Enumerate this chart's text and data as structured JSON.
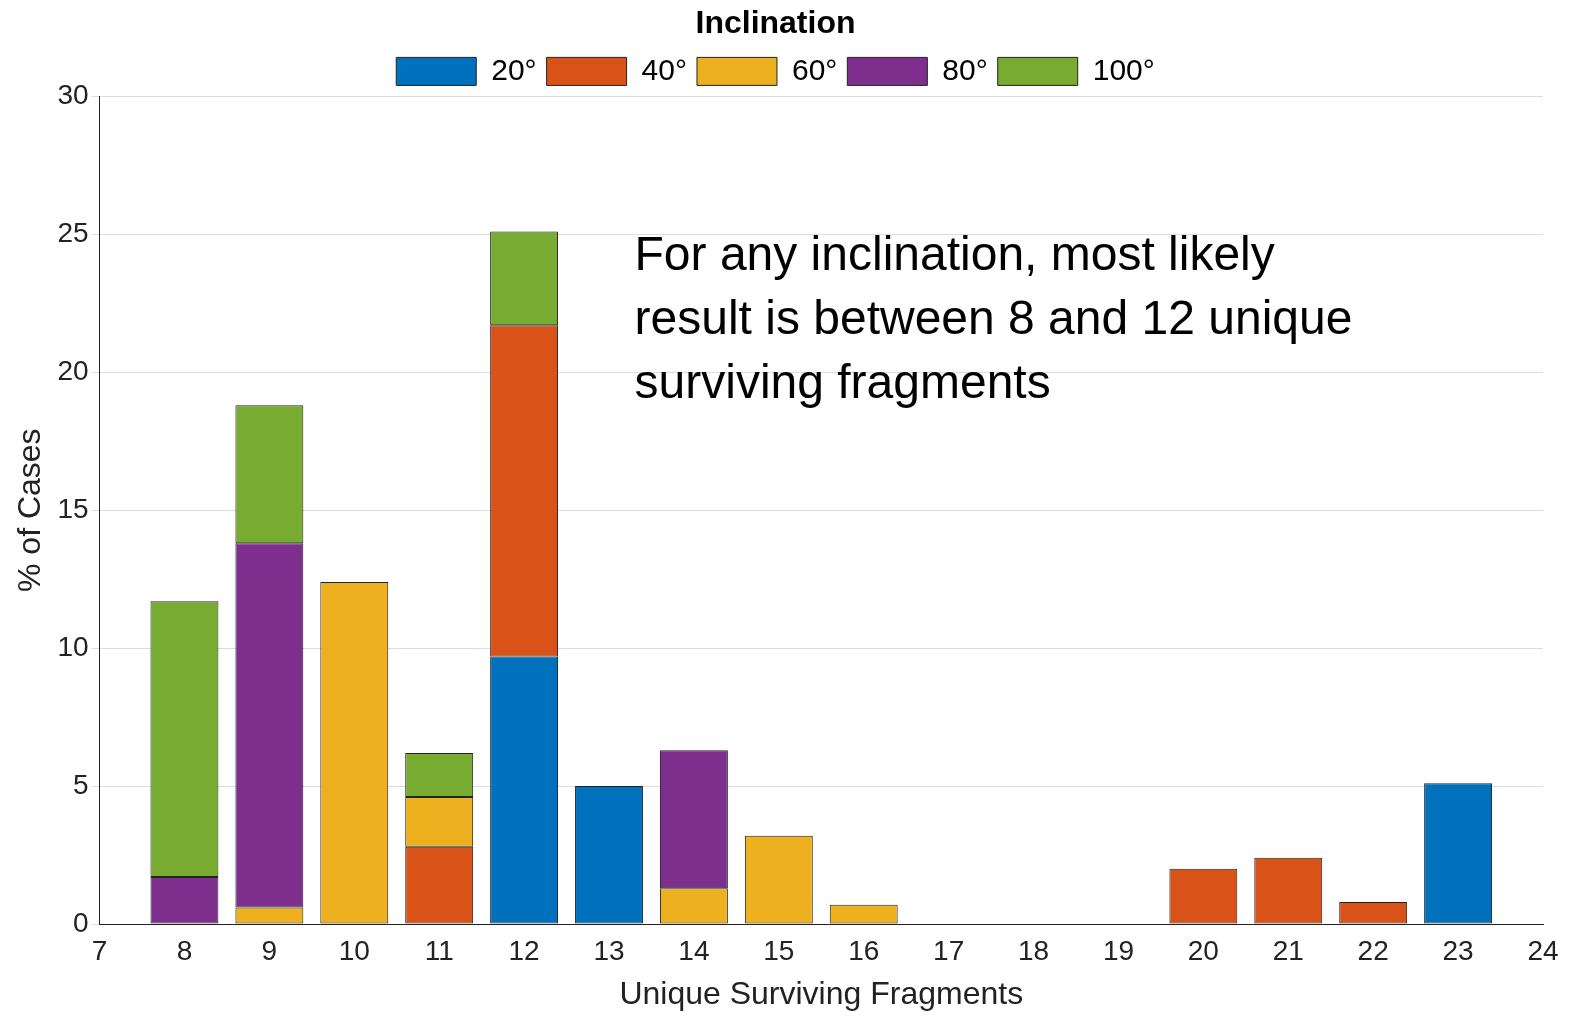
{
  "chart_data": {
    "type": "bar",
    "stacked": true,
    "xlabel": "Unique Surviving Fragments",
    "ylabel": "% of Cases",
    "legend_title": "Inclination",
    "legend": "top",
    "x": [
      8,
      9,
      10,
      11,
      12,
      13,
      14,
      15,
      16,
      17,
      18,
      19,
      20,
      21,
      22,
      23
    ],
    "xlim": [
      7,
      24
    ],
    "xticks": [
      7,
      8,
      9,
      10,
      11,
      12,
      13,
      14,
      15,
      16,
      17,
      18,
      19,
      20,
      21,
      22,
      23,
      24
    ],
    "ylim": [
      0,
      30
    ],
    "yticks": [
      0,
      5,
      10,
      15,
      20,
      25,
      30
    ],
    "grid": "y",
    "series": [
      {
        "name": "20°",
        "color": "#0072bd",
        "values": [
          null,
          null,
          null,
          null,
          9.7,
          5.0,
          null,
          null,
          null,
          null,
          null,
          null,
          null,
          null,
          null,
          5.1
        ]
      },
      {
        "name": "40°",
        "color": "#d95319",
        "values": [
          null,
          null,
          null,
          2.8,
          12.0,
          null,
          null,
          null,
          null,
          null,
          null,
          null,
          2.0,
          2.4,
          0.8,
          null
        ]
      },
      {
        "name": "60°",
        "color": "#edb120",
        "values": [
          null,
          0.6,
          12.4,
          1.8,
          null,
          null,
          1.3,
          3.2,
          0.7,
          null,
          null,
          null,
          null,
          null,
          null,
          null
        ]
      },
      {
        "name": "80°",
        "color": "#7e2f8e",
        "values": [
          1.7,
          13.2,
          null,
          null,
          null,
          null,
          5.0,
          null,
          null,
          null,
          null,
          null,
          null,
          null,
          null,
          null
        ]
      },
      {
        "name": "100°",
        "color": "#77ac30",
        "values": [
          10.0,
          5.0,
          null,
          1.6,
          3.4,
          null,
          null,
          null,
          null,
          null,
          null,
          null,
          null,
          null,
          null,
          null
        ]
      }
    ],
    "annotations": [
      "For any inclination, most likely result is between 8 and 12 unique surviving fragments"
    ]
  }
}
